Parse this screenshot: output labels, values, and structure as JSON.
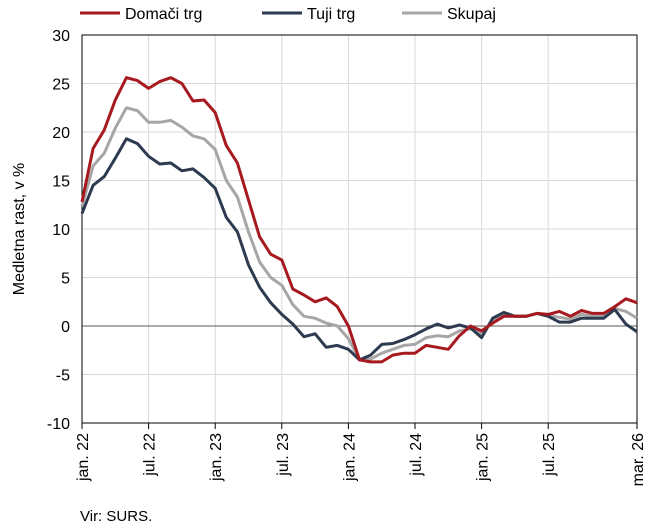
{
  "chart_data": {
    "type": "line",
    "ylabel": "Medletna rast, v %",
    "ylim": [
      -10,
      30
    ],
    "yticks": [
      -10,
      -5,
      0,
      5,
      10,
      15,
      20,
      25,
      30
    ],
    "xticks": [
      {
        "i": 0,
        "label": "jan. 22"
      },
      {
        "i": 6,
        "label": "jul. 22"
      },
      {
        "i": 12,
        "label": "jan. 23"
      },
      {
        "i": 18,
        "label": "jul. 23"
      },
      {
        "i": 24,
        "label": "jan. 24"
      },
      {
        "i": 30,
        "label": "jul. 24"
      },
      {
        "i": 36,
        "label": "jan. 25"
      },
      {
        "i": 42,
        "label": "jul. 25"
      },
      {
        "i": 50,
        "label": "mar. 26"
      }
    ],
    "grid": true,
    "legend_position": "top",
    "source": "Vir: SURS.",
    "series": [
      {
        "name": "Domači trg",
        "color": "#a6191e",
        "values": [
          12.8,
          18.3,
          20.2,
          23.3,
          25.6,
          25.3,
          24.5,
          25.2,
          25.6,
          25.0,
          23.2,
          23.3,
          22.0,
          18.6,
          16.8,
          13.0,
          9.2,
          7.4,
          6.8,
          3.8,
          3.2,
          2.5,
          2.9,
          2.0,
          0.0,
          -3.5,
          -3.7,
          -3.7,
          -3.0,
          -2.8,
          -2.8,
          -2.0,
          -2.2,
          -2.4,
          -1.0,
          0.0,
          -0.5,
          0.3,
          1.0,
          1.0,
          1.0,
          1.3,
          1.2,
          1.5,
          1.0,
          1.6,
          1.3,
          1.3,
          2.0,
          2.8,
          2.4
        ]
      },
      {
        "name": "Tuji trg",
        "color": "#2d3a4f",
        "values": [
          11.6,
          14.5,
          15.4,
          17.3,
          19.3,
          18.8,
          17.5,
          16.7,
          16.8,
          16.0,
          16.2,
          15.3,
          14.2,
          11.2,
          9.7,
          6.3,
          4.0,
          2.4,
          1.2,
          0.2,
          -1.1,
          -0.8,
          -2.2,
          -2.0,
          -2.4,
          -3.5,
          -3.0,
          -1.9,
          -1.8,
          -1.4,
          -0.9,
          -0.3,
          0.2,
          -0.2,
          0.1,
          -0.2,
          -1.2,
          0.8,
          1.4,
          1.0,
          1.0,
          1.3,
          1.0,
          0.4,
          0.4,
          0.8,
          0.8,
          0.8,
          1.7,
          0.2,
          -0.6
        ]
      },
      {
        "name": "Skupaj",
        "color": "#a6a6a6",
        "values": [
          12.3,
          16.5,
          17.8,
          20.4,
          22.5,
          22.2,
          21.0,
          21.0,
          21.2,
          20.5,
          19.6,
          19.3,
          18.2,
          15.0,
          13.3,
          9.7,
          6.6,
          5.0,
          4.2,
          2.2,
          1.0,
          0.8,
          0.3,
          0.0,
          -1.3,
          -3.5,
          -3.4,
          -2.8,
          -2.4,
          -2.0,
          -1.9,
          -1.2,
          -1.0,
          -1.1,
          -0.5,
          -0.3,
          -0.8,
          0.5,
          1.1,
          1.0,
          1.0,
          1.3,
          1.1,
          0.9,
          0.7,
          1.2,
          1.0,
          1.0,
          1.8,
          1.5,
          0.8
        ]
      }
    ]
  }
}
